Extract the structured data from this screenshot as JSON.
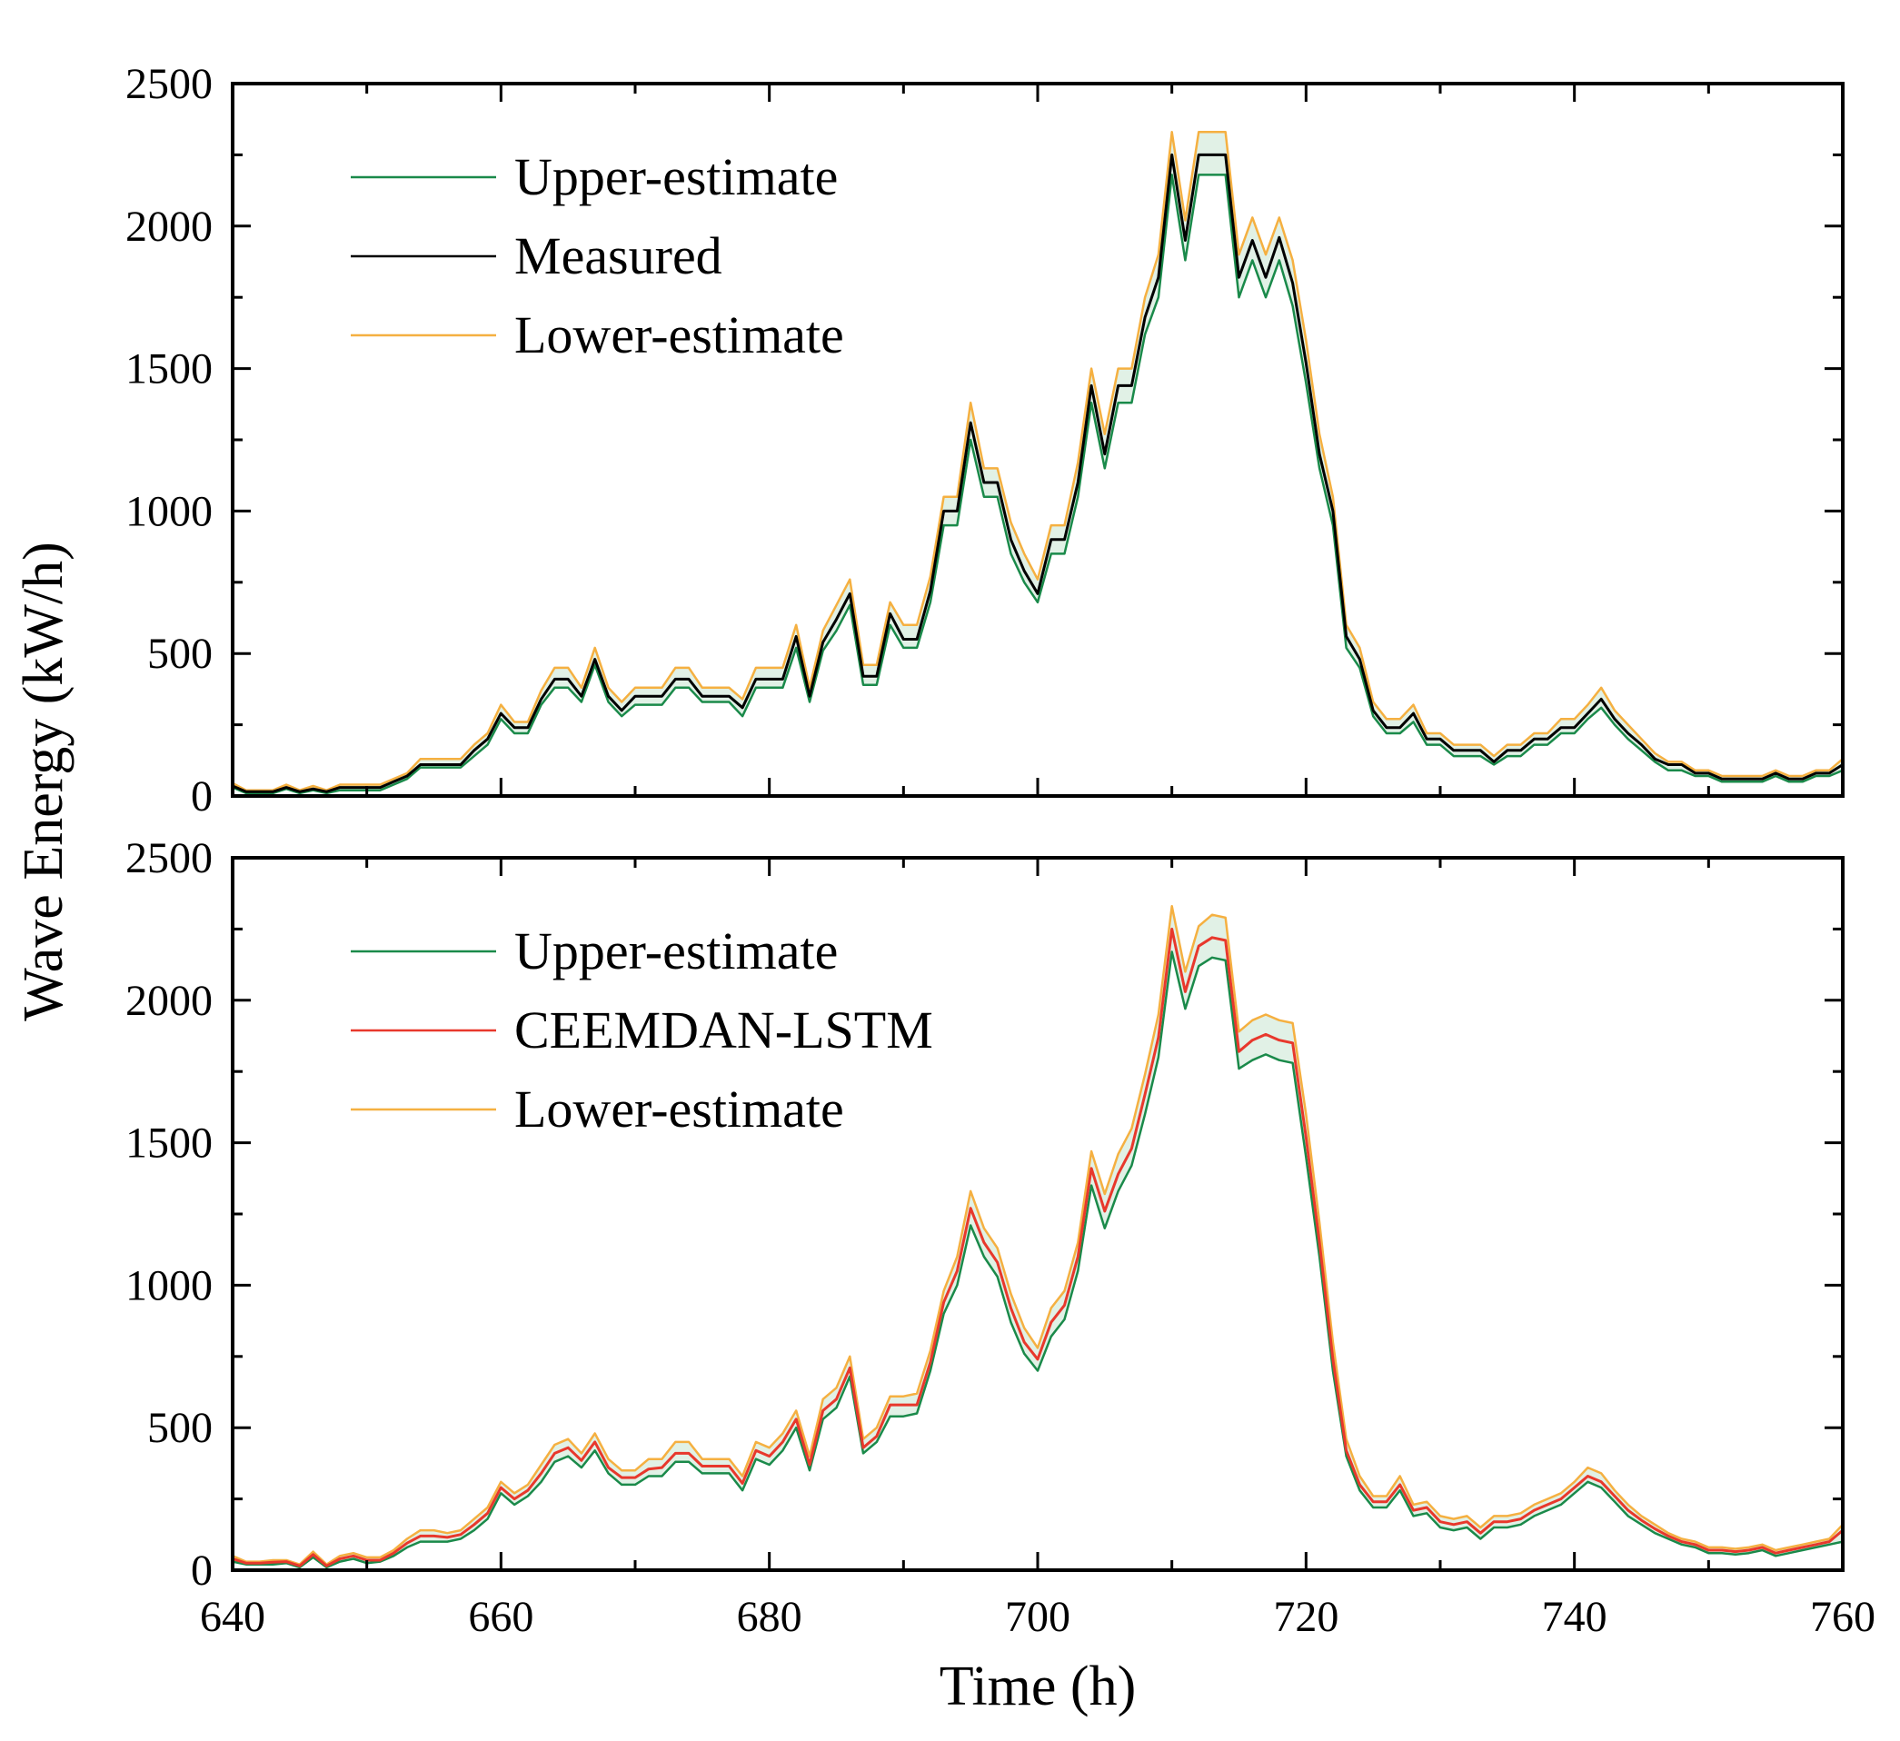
{
  "figure": {
    "ylabel": "Wave Energy (kW/h)",
    "xlabel": "Time (h)",
    "x_ticks": [
      "640",
      "660",
      "680",
      "700",
      "720",
      "740",
      "760"
    ],
    "y_ticks": [
      "0",
      "500",
      "1000",
      "1500",
      "2000",
      "2500"
    ]
  },
  "colors": {
    "upper": "#1a8a4a",
    "measured": "#000000",
    "lower": "#f5b041",
    "model": "#e8382c",
    "band": "#a8d8b8"
  },
  "chart_data": [
    {
      "type": "line",
      "panel": "top",
      "xlabel": "Time (h)",
      "ylabel": "Wave Energy (kW/h)",
      "xlim": [
        640,
        760
      ],
      "ylim": [
        0,
        2500
      ],
      "legend": "top-left",
      "x": [
        640,
        641,
        642,
        643,
        644,
        645,
        646,
        647,
        648,
        649,
        650,
        651,
        652,
        653,
        654,
        655,
        656,
        657,
        658,
        659,
        660,
        661,
        662,
        663,
        664,
        665,
        666,
        667,
        668,
        669,
        670,
        671,
        672,
        673,
        674,
        675,
        676,
        677,
        678,
        679,
        680,
        681,
        682,
        683,
        684,
        685,
        686,
        687,
        688,
        689,
        690,
        691,
        692,
        693,
        694,
        695,
        696,
        697,
        698,
        699,
        700,
        701,
        702,
        703,
        704,
        705,
        706,
        707,
        708,
        709,
        710,
        711,
        712,
        713,
        714,
        715,
        716,
        717,
        718,
        719,
        720,
        721,
        722,
        723,
        724,
        725,
        726,
        727,
        728,
        729,
        730,
        731,
        732,
        733,
        734,
        735,
        736,
        737,
        738,
        739,
        740,
        741,
        742,
        743,
        744,
        745,
        746,
        747,
        748,
        749,
        750,
        751,
        752,
        753,
        754,
        755,
        756,
        757,
        758,
        759,
        760
      ],
      "series": [
        {
          "name": "Upper-estimate",
          "key": "upper",
          "values": [
            30,
            10,
            10,
            10,
            25,
            10,
            20,
            10,
            20,
            20,
            20,
            20,
            40,
            60,
            100,
            100,
            100,
            100,
            140,
            180,
            270,
            220,
            220,
            320,
            380,
            380,
            330,
            460,
            330,
            280,
            320,
            320,
            320,
            380,
            380,
            330,
            330,
            330,
            280,
            380,
            380,
            380,
            520,
            330,
            510,
            580,
            670,
            390,
            390,
            600,
            520,
            520,
            680,
            950,
            950,
            1250,
            1050,
            1050,
            850,
            750,
            680,
            850,
            850,
            1050,
            1380,
            1150,
            1380,
            1380,
            1620,
            1750,
            2180,
            1880,
            2180,
            2180,
            2180,
            1750,
            1880,
            1750,
            1880,
            1720,
            1450,
            1150,
            950,
            520,
            450,
            280,
            220,
            220,
            260,
            180,
            180,
            140,
            140,
            140,
            110,
            140,
            140,
            180,
            180,
            220,
            220,
            270,
            310,
            250,
            200,
            160,
            120,
            90,
            90,
            70,
            70,
            50,
            50,
            50,
            50,
            70,
            50,
            50,
            70,
            70,
            90
          ]
        },
        {
          "name": "Measured",
          "key": "measured",
          "values": [
            35,
            15,
            15,
            15,
            30,
            15,
            25,
            15,
            30,
            30,
            30,
            30,
            50,
            70,
            110,
            110,
            110,
            110,
            160,
            200,
            290,
            240,
            240,
            340,
            410,
            410,
            350,
            480,
            350,
            300,
            350,
            350,
            350,
            410,
            410,
            350,
            350,
            350,
            310,
            410,
            410,
            410,
            560,
            350,
            540,
            620,
            710,
            420,
            420,
            640,
            550,
            550,
            720,
            1000,
            1000,
            1310,
            1100,
            1100,
            900,
            790,
            710,
            900,
            900,
            1100,
            1440,
            1200,
            1440,
            1440,
            1680,
            1820,
            2250,
            1950,
            2250,
            2250,
            2250,
            1820,
            1950,
            1820,
            1960,
            1800,
            1520,
            1200,
            1000,
            560,
            480,
            300,
            240,
            240,
            290,
            200,
            200,
            160,
            160,
            160,
            120,
            160,
            160,
            200,
            200,
            240,
            240,
            290,
            340,
            270,
            220,
            180,
            130,
            110,
            110,
            80,
            80,
            60,
            60,
            60,
            60,
            80,
            60,
            60,
            80,
            80,
            110
          ]
        },
        {
          "name": "Lower-estimate",
          "key": "lower",
          "values": [
            45,
            20,
            20,
            20,
            40,
            20,
            35,
            20,
            40,
            40,
            40,
            40,
            60,
            80,
            130,
            130,
            130,
            130,
            180,
            220,
            320,
            260,
            260,
            370,
            450,
            450,
            380,
            520,
            380,
            330,
            380,
            380,
            380,
            450,
            450,
            380,
            380,
            380,
            340,
            450,
            450,
            450,
            600,
            380,
            580,
            670,
            760,
            460,
            460,
            680,
            600,
            600,
            770,
            1050,
            1050,
            1380,
            1150,
            1150,
            960,
            850,
            760,
            950,
            950,
            1170,
            1500,
            1270,
            1500,
            1500,
            1750,
            1900,
            2330,
            2020,
            2330,
            2330,
            2330,
            1900,
            2030,
            1900,
            2030,
            1880,
            1600,
            1270,
            1050,
            600,
            520,
            330,
            270,
            270,
            320,
            220,
            220,
            180,
            180,
            180,
            140,
            180,
            180,
            220,
            220,
            270,
            270,
            320,
            380,
            300,
            250,
            200,
            150,
            120,
            120,
            90,
            90,
            70,
            70,
            70,
            70,
            90,
            70,
            70,
            90,
            90,
            130
          ]
        }
      ]
    },
    {
      "type": "line",
      "panel": "bottom",
      "xlabel": "Time (h)",
      "ylabel": "Wave Energy (kW/h)",
      "xlim": [
        640,
        760
      ],
      "ylim": [
        0,
        2500
      ],
      "legend": "top-left",
      "x": [
        640,
        641,
        642,
        643,
        644,
        645,
        646,
        647,
        648,
        649,
        650,
        651,
        652,
        653,
        654,
        655,
        656,
        657,
        658,
        659,
        660,
        661,
        662,
        663,
        664,
        665,
        666,
        667,
        668,
        669,
        670,
        671,
        672,
        673,
        674,
        675,
        676,
        677,
        678,
        679,
        680,
        681,
        682,
        683,
        684,
        685,
        686,
        687,
        688,
        689,
        690,
        691,
        692,
        693,
        694,
        695,
        696,
        697,
        698,
        699,
        700,
        701,
        702,
        703,
        704,
        705,
        706,
        707,
        708,
        709,
        710,
        711,
        712,
        713,
        714,
        715,
        716,
        717,
        718,
        719,
        720,
        721,
        722,
        723,
        724,
        725,
        726,
        727,
        728,
        729,
        730,
        731,
        732,
        733,
        734,
        735,
        736,
        737,
        738,
        739,
        740,
        741,
        742,
        743,
        744,
        745,
        746,
        747,
        748,
        749,
        750,
        751,
        752,
        753,
        754,
        755,
        756,
        757,
        758,
        759,
        760
      ],
      "series": [
        {
          "name": "Upper-estimate",
          "key": "upper",
          "values": [
            30,
            20,
            20,
            20,
            25,
            10,
            45,
            10,
            30,
            40,
            25,
            30,
            50,
            80,
            100,
            100,
            100,
            110,
            140,
            180,
            270,
            230,
            260,
            310,
            380,
            400,
            360,
            420,
            340,
            300,
            300,
            330,
            330,
            380,
            380,
            340,
            340,
            340,
            280,
            390,
            370,
            420,
            500,
            350,
            530,
            570,
            680,
            410,
            450,
            540,
            540,
            550,
            700,
            900,
            1000,
            1210,
            1100,
            1030,
            870,
            760,
            700,
            820,
            880,
            1050,
            1350,
            1200,
            1330,
            1420,
            1600,
            1800,
            2170,
            1970,
            2120,
            2150,
            2140,
            1760,
            1790,
            1810,
            1790,
            1780,
            1450,
            1100,
            700,
            400,
            280,
            220,
            220,
            280,
            190,
            200,
            150,
            140,
            150,
            110,
            150,
            150,
            160,
            190,
            210,
            230,
            270,
            310,
            290,
            240,
            190,
            160,
            130,
            110,
            90,
            80,
            60,
            60,
            55,
            60,
            70,
            50,
            60,
            70,
            80,
            90,
            100
          ]
        },
        {
          "name": "CEEMDAN-LSTM",
          "key": "model",
          "values": [
            40,
            25,
            25,
            28,
            30,
            15,
            55,
            15,
            40,
            50,
            35,
            35,
            60,
            95,
            120,
            120,
            115,
            125,
            160,
            200,
            290,
            250,
            280,
            340,
            410,
            430,
            385,
            450,
            360,
            325,
            325,
            355,
            360,
            410,
            410,
            365,
            365,
            365,
            305,
            420,
            400,
            450,
            530,
            370,
            560,
            600,
            710,
            430,
            470,
            580,
            580,
            580,
            730,
            940,
            1050,
            1270,
            1150,
            1080,
            920,
            800,
            740,
            870,
            930,
            1100,
            1410,
            1260,
            1390,
            1480,
            1670,
            1870,
            2250,
            2030,
            2190,
            2220,
            2210,
            1820,
            1860,
            1880,
            1860,
            1850,
            1520,
            1150,
            740,
            420,
            300,
            240,
            240,
            300,
            210,
            220,
            170,
            160,
            170,
            130,
            170,
            170,
            180,
            210,
            230,
            250,
            290,
            330,
            310,
            260,
            210,
            175,
            145,
            120,
            100,
            90,
            70,
            70,
            65,
            70,
            80,
            60,
            70,
            80,
            90,
            100,
            140
          ]
        },
        {
          "name": "Lower-estimate",
          "key": "lower",
          "values": [
            50,
            30,
            30,
            35,
            35,
            20,
            65,
            20,
            50,
            60,
            45,
            45,
            70,
            110,
            140,
            140,
            130,
            140,
            180,
            220,
            310,
            270,
            300,
            370,
            440,
            460,
            410,
            480,
            390,
            350,
            350,
            390,
            390,
            450,
            450,
            390,
            390,
            390,
            330,
            450,
            430,
            480,
            560,
            400,
            600,
            640,
            750,
            460,
            500,
            610,
            610,
            620,
            770,
            980,
            1100,
            1330,
            1200,
            1130,
            970,
            850,
            780,
            920,
            980,
            1150,
            1470,
            1320,
            1460,
            1550,
            1740,
            1950,
            2330,
            2100,
            2260,
            2300,
            2290,
            1890,
            1930,
            1950,
            1930,
            1920,
            1600,
            1220,
            800,
            460,
            330,
            260,
            260,
            330,
            230,
            240,
            190,
            180,
            190,
            150,
            190,
            190,
            200,
            230,
            250,
            270,
            310,
            360,
            340,
            280,
            230,
            190,
            160,
            130,
            110,
            100,
            80,
            80,
            75,
            80,
            90,
            70,
            80,
            90,
            100,
            110,
            160
          ]
        }
      ]
    }
  ]
}
